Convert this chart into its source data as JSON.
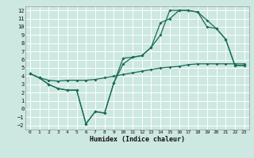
{
  "xlabel": "Humidex (Indice chaleur)",
  "background_color": "#cce8e0",
  "grid_color": "#ffffff",
  "line_color": "#1a6b5a",
  "xlim": [
    -0.5,
    23.5
  ],
  "ylim": [
    -2.5,
    12.5
  ],
  "xticks": [
    0,
    1,
    2,
    3,
    4,
    5,
    6,
    7,
    8,
    9,
    10,
    11,
    12,
    13,
    14,
    15,
    16,
    17,
    18,
    19,
    20,
    21,
    22,
    23
  ],
  "yticks": [
    -2,
    -1,
    0,
    1,
    2,
    3,
    4,
    5,
    6,
    7,
    8,
    9,
    10,
    11,
    12
  ],
  "curve1_x": [
    0,
    1,
    2,
    3,
    4,
    5,
    6,
    7,
    8,
    9,
    10,
    11,
    12,
    13,
    14,
    15,
    16,
    17,
    18,
    19,
    20,
    21,
    22,
    23
  ],
  "curve1_y": [
    4.3,
    3.8,
    3.0,
    2.5,
    2.3,
    2.3,
    -1.8,
    -0.3,
    -0.5,
    3.2,
    6.2,
    6.3,
    6.5,
    7.5,
    9.0,
    12.0,
    12.0,
    12.0,
    11.8,
    10.8,
    9.8,
    8.5,
    5.3,
    5.3
  ],
  "curve2_x": [
    0,
    1,
    2,
    3,
    4,
    5,
    6,
    7,
    8,
    9,
    10,
    11,
    12,
    13,
    14,
    15,
    16,
    17,
    18,
    19,
    20,
    21,
    22,
    23
  ],
  "curve2_y": [
    4.3,
    3.8,
    3.0,
    2.5,
    2.3,
    2.3,
    -1.8,
    -0.3,
    -0.5,
    3.2,
    5.5,
    6.3,
    6.5,
    7.5,
    10.5,
    11.0,
    12.0,
    12.0,
    11.8,
    10.0,
    9.8,
    8.5,
    5.3,
    5.3
  ],
  "curve3_x": [
    0,
    1,
    2,
    3,
    4,
    5,
    6,
    7,
    8,
    9,
    10,
    11,
    12,
    13,
    14,
    15,
    16,
    17,
    18,
    19,
    20,
    21,
    22,
    23
  ],
  "curve3_y": [
    4.3,
    3.8,
    3.5,
    3.4,
    3.5,
    3.5,
    3.5,
    3.6,
    3.8,
    4.0,
    4.2,
    4.4,
    4.6,
    4.8,
    5.0,
    5.1,
    5.2,
    5.4,
    5.5,
    5.5,
    5.5,
    5.5,
    5.5,
    5.5
  ]
}
